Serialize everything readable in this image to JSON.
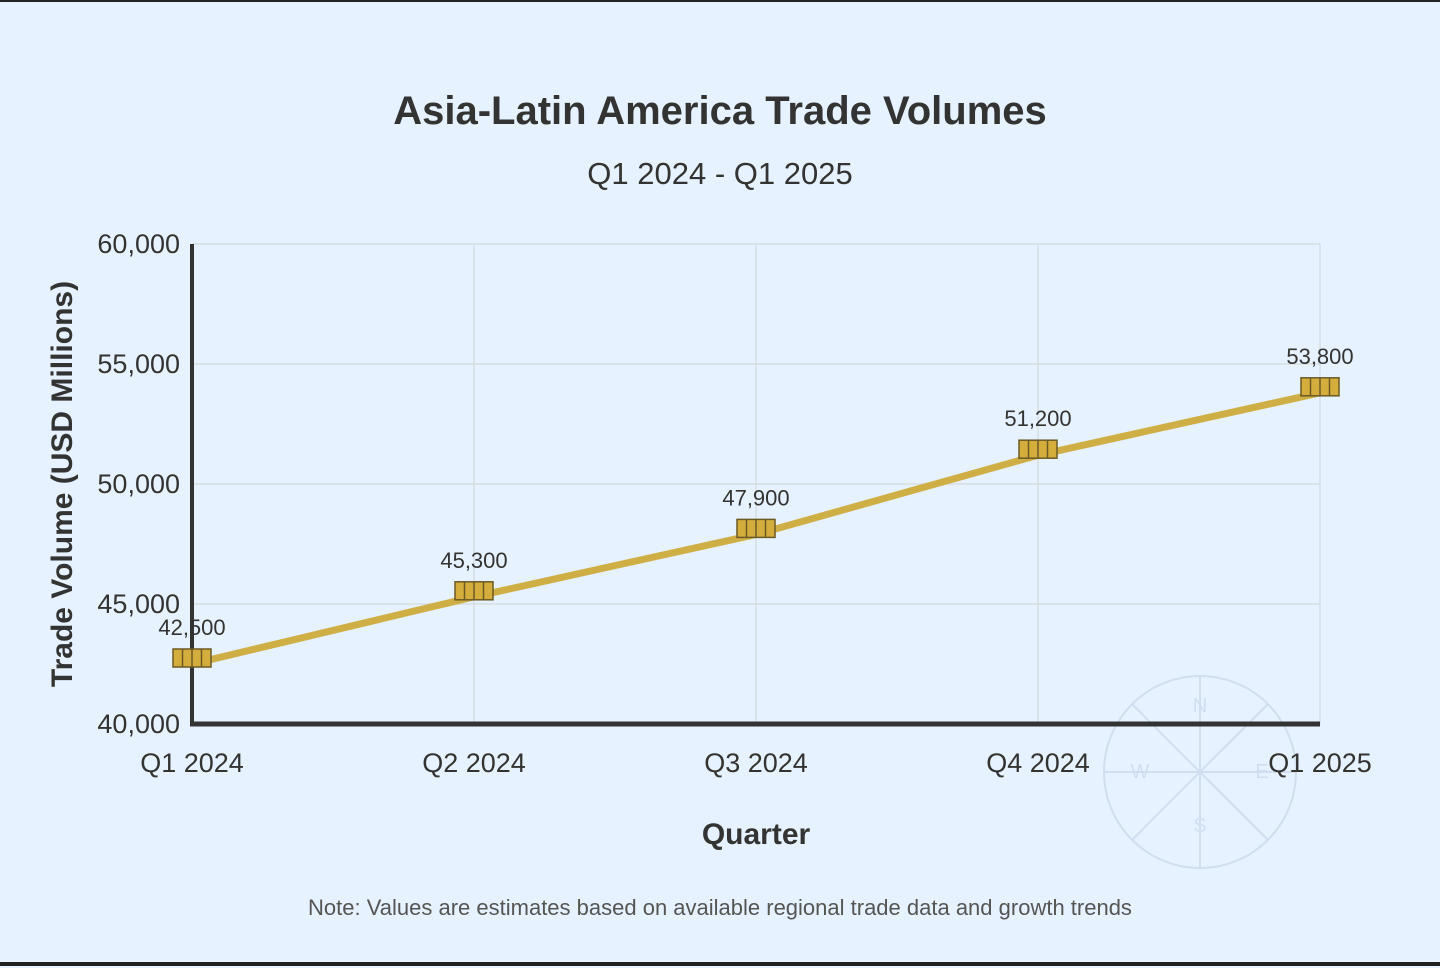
{
  "chart_data": {
    "type": "line",
    "title": "Asia-Latin America Trade Volumes",
    "subtitle": "Q1 2024 - Q1 2025",
    "xlabel": "Quarter",
    "ylabel": "Trade Volume (USD Millions)",
    "categories": [
      "Q1 2024",
      "Q2 2024",
      "Q3 2024",
      "Q4 2024",
      "Q1 2025"
    ],
    "series": [
      {
        "name": "",
        "values": [
          42500,
          45300,
          47900,
          51200,
          53800
        ]
      }
    ],
    "data_labels": [
      "42,500",
      "45,300",
      "47,900",
      "51,200",
      "53,800"
    ],
    "y_ticks": [
      "40,000",
      "45,000",
      "50,000",
      "55,000",
      "60,000"
    ],
    "y_tick_values": [
      40000,
      45000,
      50000,
      55000,
      60000
    ],
    "ylim": [
      40000,
      60000
    ],
    "grid": true,
    "note": "Note: Values are estimates based on available regional trade data and growth trends",
    "compass_labels": {
      "n": "N",
      "e": "E",
      "s": "S",
      "w": "W"
    },
    "colors": {
      "background": "#e6f2ff",
      "line": "#cfaf45",
      "marker_fill": "#d4ad3c",
      "marker_stroke": "#6b5a24",
      "grid": "#d6dde4",
      "axis": "#333333",
      "text": "#333333",
      "note_text": "#555555",
      "compass": "#c9d8ea"
    }
  }
}
